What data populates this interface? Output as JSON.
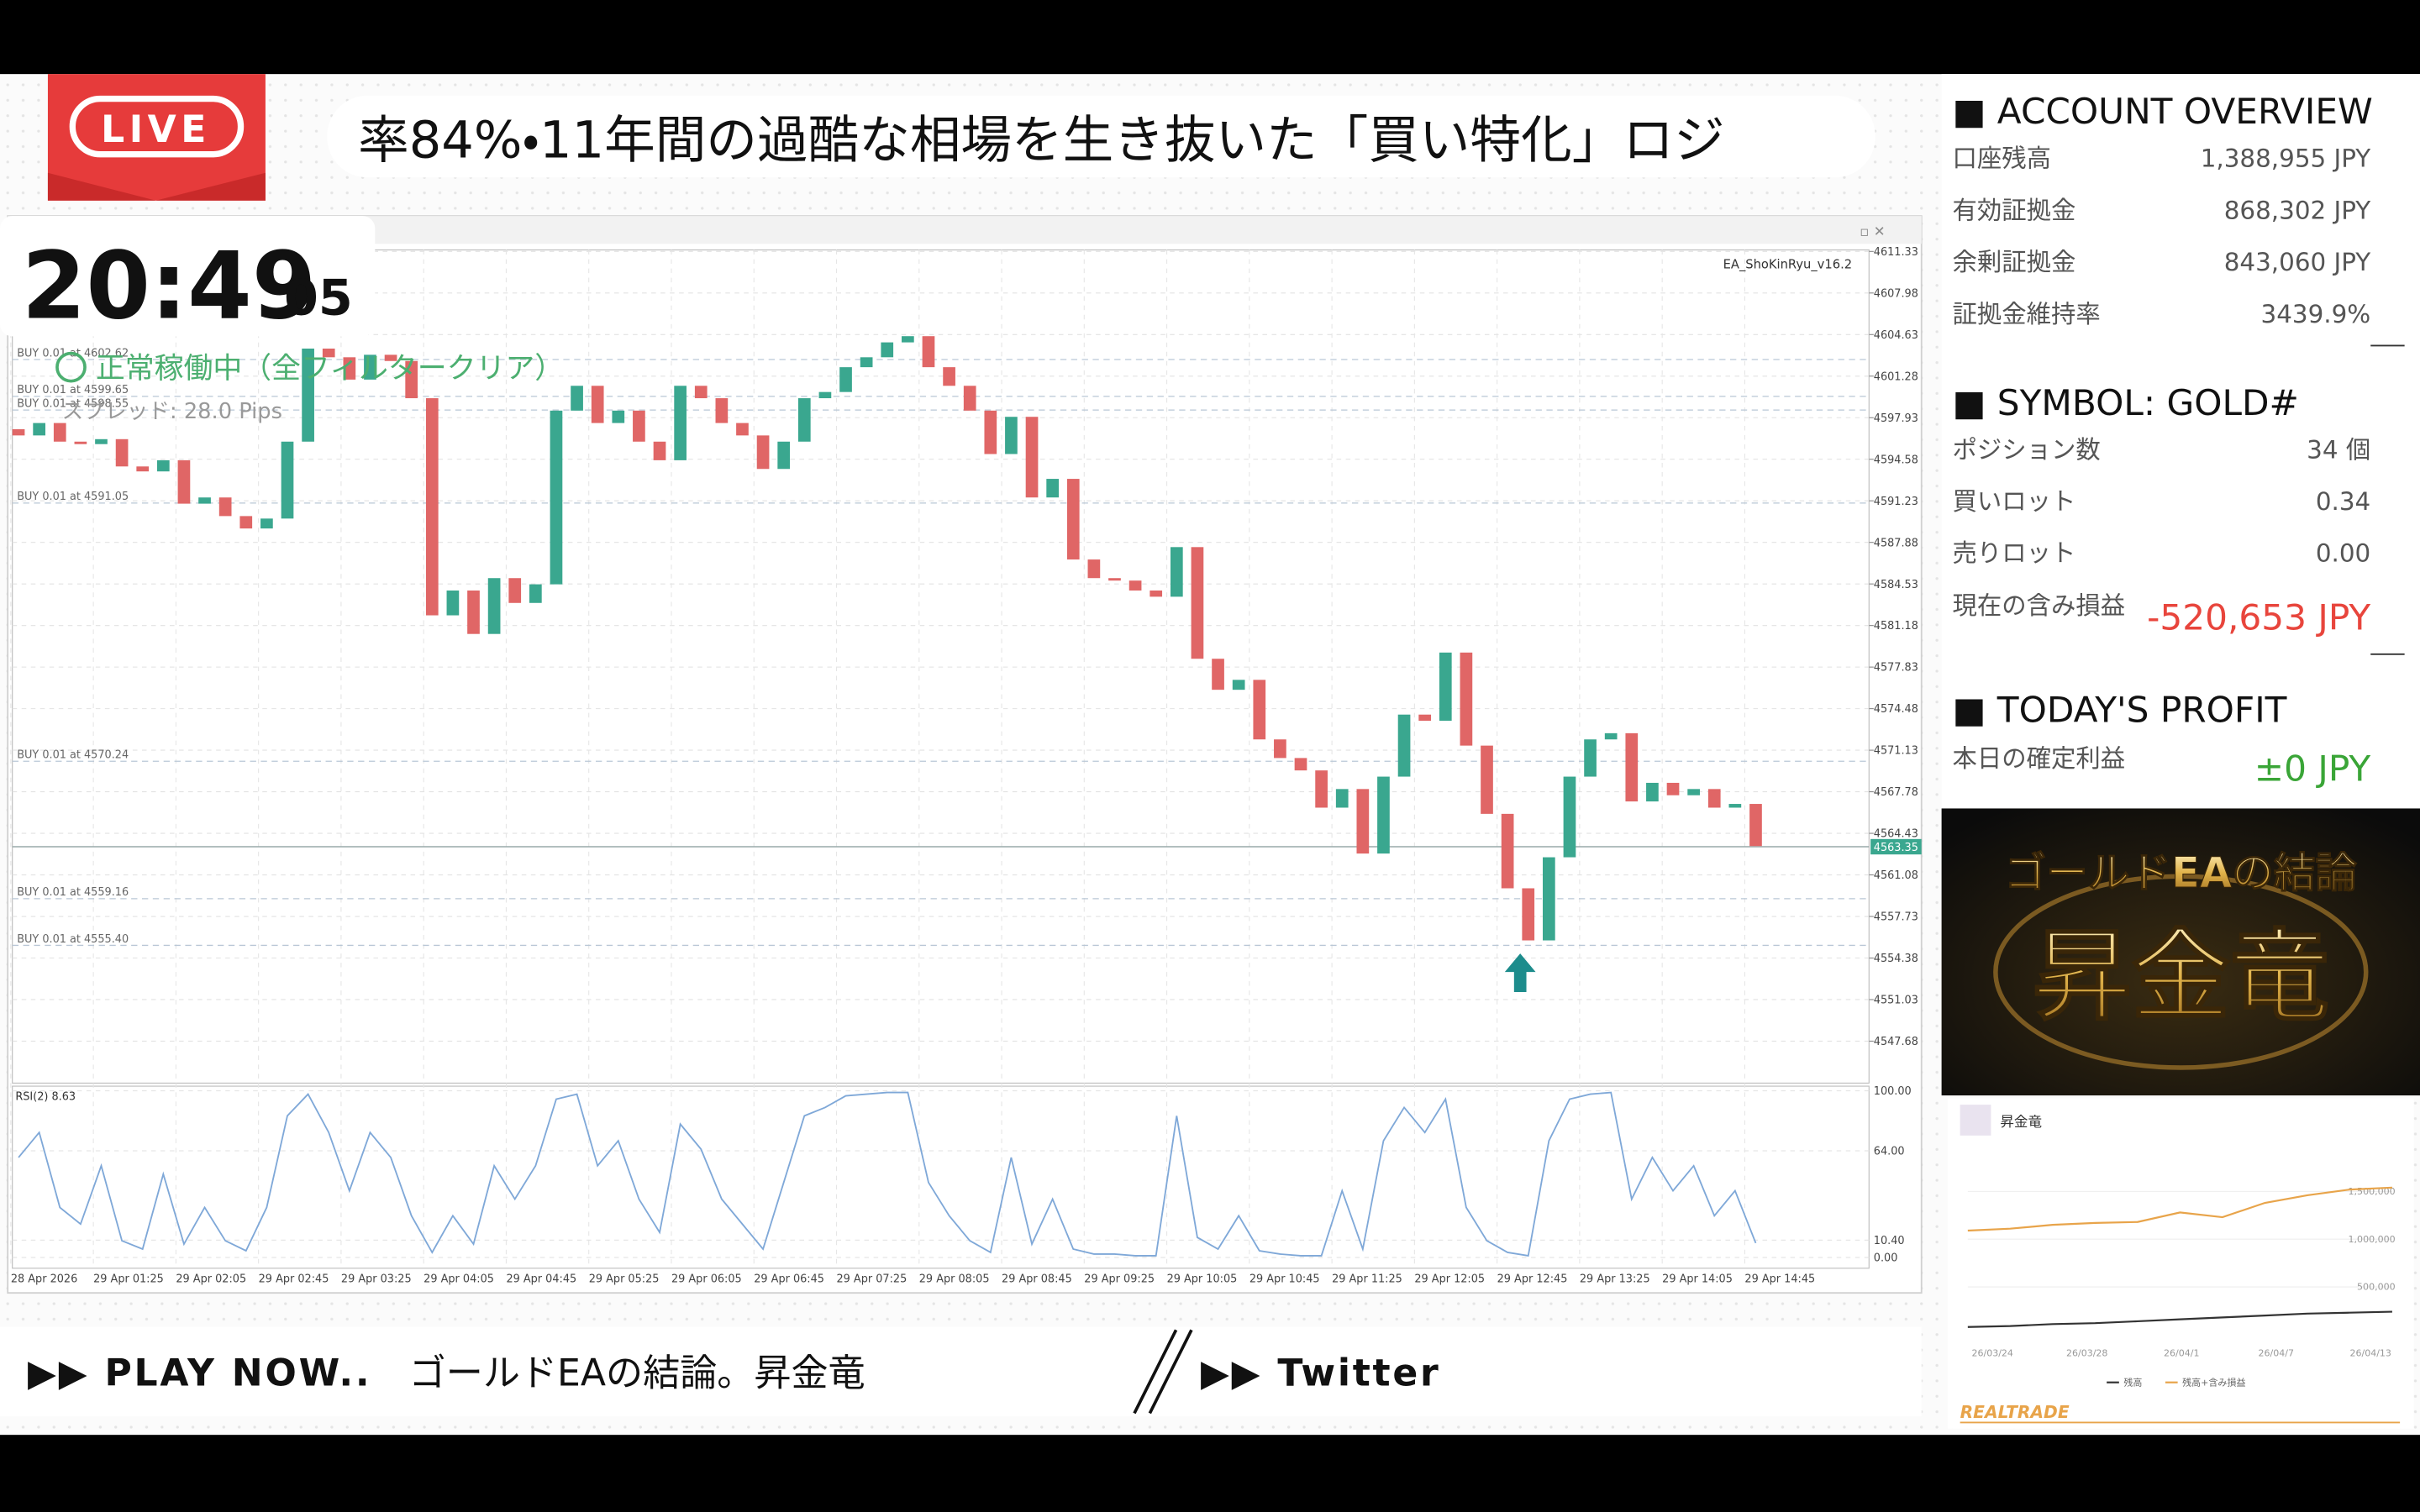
{
  "header": {
    "live": "LIVE",
    "ticker": "率84%・11年間の過酷な相場を生き抜いた「買い特化」ロジ",
    "clock_hm": "20:49",
    "clock_s": "05"
  },
  "chart_data": {
    "type": "candlestick",
    "ea_name": "EA_ShoKinRyu_v16.2",
    "status": "正常稼働中（全フィルタークリア）",
    "spread": "スプレッド: 28.0 Pips",
    "up_color": "#3aa78f",
    "down_color": "#e06666",
    "open": 4597.0,
    "close": [
      4596.5,
      4597.5,
      4596.0,
      4595.8,
      4596.2,
      4594.0,
      4593.6,
      4594.5,
      4591.0,
      4591.5,
      4590.0,
      4589.0,
      4589.8,
      4596.0,
      4603.5,
      4602.8,
      4601.0,
      4603.0,
      4602.5,
      4599.5,
      4582.0,
      4584.0,
      4580.5,
      4585.0,
      4583.0,
      4584.5,
      4598.5,
      4600.5,
      4597.5,
      4598.5,
      4596.0,
      4594.5,
      4600.5,
      4599.5,
      4597.5,
      4596.5,
      4593.8,
      4596.0,
      4599.5,
      4600.0,
      4602.0,
      4602.8,
      4604.0,
      4604.5,
      4602.0,
      4600.5,
      4598.5,
      4595.0,
      4598.0,
      4591.5,
      4593.0,
      4586.5,
      4585.0,
      4584.8,
      4584.0,
      4583.5,
      4587.5,
      4578.5,
      4576.0,
      4576.8,
      4572.0,
      4570.5,
      4569.5,
      4566.5,
      4568.0,
      4562.8,
      4569.0,
      4574.0,
      4573.5,
      4579.0,
      4571.5,
      4566.0,
      4560.0,
      4555.8,
      4562.5,
      4569.0,
      4572.0,
      4572.5,
      4567.0,
      4568.5,
      4567.5,
      4568.0,
      4566.5,
      4566.8,
      4563.4
    ],
    "ylim": [
      4544.3,
      4611.45
    ],
    "yticks": [
      4611.33,
      4607.98,
      4604.63,
      4601.28,
      4597.93,
      4594.58,
      4591.23,
      4587.88,
      4584.53,
      4581.18,
      4577.83,
      4574.48,
      4571.13,
      4567.78,
      4564.43,
      4561.08,
      4557.73,
      4554.38,
      4551.03,
      4547.68
    ],
    "grid": true,
    "current_price": 4563.35,
    "positions": [
      {
        "label": "BUY 0.01 at 4602.62",
        "price": 4602.62
      },
      {
        "label": "BUY 0.01 at 4599.65",
        "price": 4599.65
      },
      {
        "label": "BUY 0.01 at 4598.55",
        "price": 4598.55
      },
      {
        "label": "BUY 0.01 at 4591.05",
        "price": 4591.05
      },
      {
        "label": "BUY 0.01 at 4570.24",
        "price": 4570.24
      },
      {
        "label": "BUY 0.01 at 4559.16",
        "price": 4559.16
      },
      {
        "label": "BUY 0.01 at 4555.40",
        "price": 4555.4
      }
    ],
    "x_labels": [
      "28 Apr 2026",
      "29 Apr 01:25",
      "29 Apr 02:05",
      "29 Apr 02:45",
      "29 Apr 03:25",
      "29 Apr 04:05",
      "29 Apr 04:45",
      "29 Apr 05:25",
      "29 Apr 06:05",
      "29 Apr 06:45",
      "29 Apr 07:25",
      "29 Apr 08:05",
      "29 Apr 08:45",
      "29 Apr 09:25",
      "29 Apr 10:05",
      "29 Apr 10:45",
      "29 Apr 11:25",
      "29 Apr 12:05",
      "29 Apr 12:45",
      "29 Apr 13:25",
      "29 Apr 14:05",
      "29 Apr 14:45"
    ],
    "rsi": {
      "label": "RSI(2) 8.63",
      "color": "#7fa8d8",
      "values": [
        60,
        75,
        30,
        20,
        55,
        10,
        5,
        50,
        8,
        30,
        10,
        4,
        30,
        85,
        98,
        75,
        40,
        75,
        60,
        25,
        3,
        25,
        8,
        55,
        35,
        55,
        95,
        98,
        55,
        70,
        35,
        15,
        80,
        65,
        35,
        20,
        5,
        45,
        85,
        90,
        97,
        98,
        99,
        99,
        45,
        25,
        10,
        3,
        60,
        8,
        35,
        5,
        2,
        2,
        1,
        1,
        85,
        12,
        5,
        25,
        4,
        2,
        1,
        1,
        40,
        5,
        70,
        90,
        75,
        95,
        30,
        10,
        3,
        1,
        70,
        95,
        98,
        99,
        35,
        60,
        40,
        55,
        25,
        40,
        8.63
      ],
      "ylim": [
        -6.5,
        102.8
      ],
      "yticks": [
        {
          "value": 100,
          "label": "100.00"
        },
        {
          "value": 64,
          "label": "64.00"
        },
        {
          "value": 10.4,
          "label": "10.40"
        },
        {
          "value": 0,
          "label": "0.00"
        }
      ]
    }
  },
  "account": {
    "title": "■ ACCOUNT OVERVIEW",
    "rows": [
      [
        "口座残高",
        "1,388,955 JPY"
      ],
      [
        "有効証拠金",
        "868,302 JPY"
      ],
      [
        "余剰証拠金",
        "843,060 JPY"
      ],
      [
        "証拠金維持率",
        "3439.9%"
      ]
    ]
  },
  "symbol": {
    "title": "■ SYMBOL: GOLD#",
    "rows": [
      [
        "ポジション数",
        "34 個"
      ],
      [
        "買いロット",
        "0.34"
      ],
      [
        "売りロット",
        "0.00"
      ]
    ],
    "pl_label": "現在の含み損益",
    "pl_value": "-520,653 JPY"
  },
  "profit": {
    "title": "■ TODAY'S PROFIT",
    "label": "本日の確定利益",
    "value": "±0 JPY"
  },
  "banner": {
    "line1": "ゴールドEAの結論",
    "line2": "昇金竜"
  },
  "mini_chart": {
    "type": "line",
    "title": "昇金竜",
    "series": [
      {
        "name": "残高",
        "color": "#333333",
        "values": [
          80000,
          90000,
          110000,
          120000,
          140000,
          160000,
          180000,
          200000,
          220000,
          230000,
          240000
        ]
      },
      {
        "name": "残高+含み損益",
        "color": "#e8a44a",
        "values": [
          1090000,
          1110000,
          1150000,
          1170000,
          1180000,
          1280000,
          1230000,
          1380000,
          1460000,
          1520000,
          1540000
        ]
      }
    ],
    "ylim": [
      -48000,
      1730000
    ],
    "yticks": [
      {
        "value": 500000,
        "label": "500,000"
      },
      {
        "value": 1000000,
        "label": "1,000,000"
      },
      {
        "value": 1500000,
        "label": "1,500,000"
      }
    ],
    "x_labels": [
      "26/03/24",
      "26/03/28",
      "26/04/1",
      "26/04/7",
      "26/04/13"
    ],
    "logo": "REALTRADE"
  },
  "footer": {
    "play": "▶▶ PLAY NOW..",
    "song": "ゴールドEAの結論。昇金竜",
    "twitter": "▶▶ Twitter"
  }
}
